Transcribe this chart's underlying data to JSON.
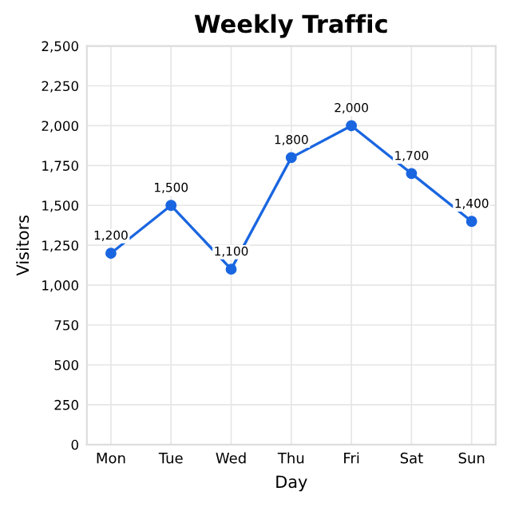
{
  "chart_data": {
    "type": "line",
    "title": "Weekly Traffic",
    "xlabel": "Day",
    "ylabel": "Visitors",
    "categories": [
      "Mon",
      "Tue",
      "Wed",
      "Thu",
      "Fri",
      "Sat",
      "Sun"
    ],
    "series": [
      {
        "color": "#1a66e0",
        "values": [
          1200,
          1500,
          1100,
          1800,
          2000,
          1700,
          1400
        ],
        "value_labels": [
          "1,200",
          "1,500",
          "1,100",
          "1,800",
          "2,000",
          "1,700",
          "1,400"
        ]
      }
    ],
    "ylim": [
      0,
      2500
    ],
    "yticks": [
      0,
      250,
      500,
      750,
      {
        "value": 1000,
        "label": "1,000"
      },
      {
        "value": 1250,
        "label": "1,250"
      },
      {
        "value": 1500,
        "label": "1,500"
      },
      {
        "value": 1750,
        "label": "1,750"
      },
      {
        "value": 2000,
        "label": "2,000"
      },
      {
        "value": 2250,
        "label": "2,250"
      },
      {
        "value": 2500,
        "label": "2,500"
      }
    ],
    "grid": true,
    "marker": "circle",
    "line_style": "solid"
  }
}
